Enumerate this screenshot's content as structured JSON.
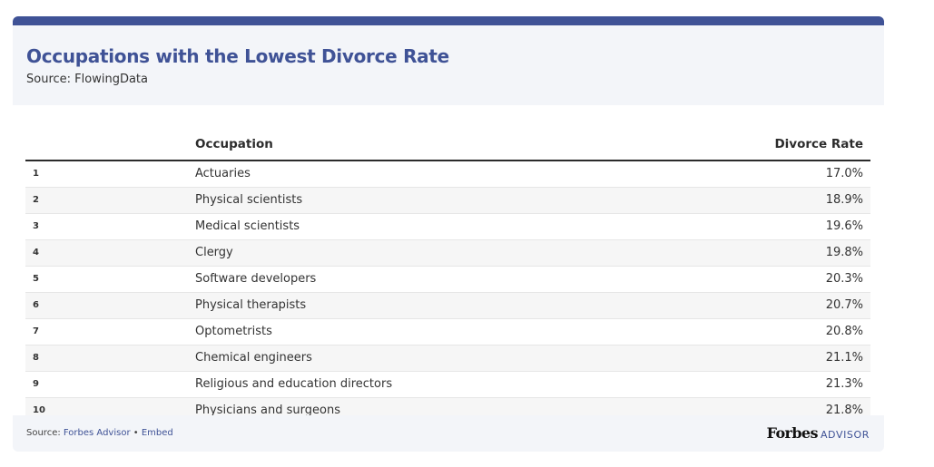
{
  "header": {
    "title": "Occupations with the Lowest Divorce Rate",
    "source": "Source: FlowingData"
  },
  "chart_data": {
    "type": "table",
    "title": "Occupations with the Lowest Divorce Rate",
    "columns": [
      "",
      "Occupation",
      "Divorce Rate"
    ],
    "rows": [
      {
        "rank": "1",
        "occupation": "Actuaries",
        "rate": "17.0%"
      },
      {
        "rank": "2",
        "occupation": "Physical scientists",
        "rate": "18.9%"
      },
      {
        "rank": "3",
        "occupation": "Medical scientists",
        "rate": "19.6%"
      },
      {
        "rank": "4",
        "occupation": "Clergy",
        "rate": "19.8%"
      },
      {
        "rank": "5",
        "occupation": "Software developers",
        "rate": "20.3%"
      },
      {
        "rank": "6",
        "occupation": "Physical therapists",
        "rate": "20.7%"
      },
      {
        "rank": "7",
        "occupation": "Optometrists",
        "rate": "20.8%"
      },
      {
        "rank": "8",
        "occupation": "Chemical engineers",
        "rate": "21.1%"
      },
      {
        "rank": "9",
        "occupation": "Religious and education directors",
        "rate": "21.3%"
      },
      {
        "rank": "10",
        "occupation": "Physicians and surgeons",
        "rate": "21.8%"
      }
    ]
  },
  "footer": {
    "source_prefix": "Source: ",
    "source_link": "Forbes Advisor",
    "separator": " • ",
    "embed_link": "Embed",
    "brand_forbes": "Forbes",
    "brand_advisor": "ADVISOR"
  },
  "colors": {
    "accent": "#3f5296",
    "panel": "#f3f5f9"
  }
}
